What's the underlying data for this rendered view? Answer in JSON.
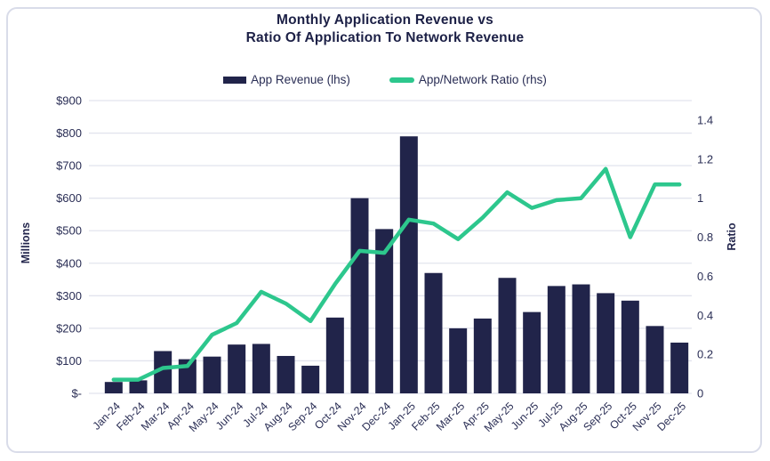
{
  "chart_data": {
    "type": "combo-bar-line",
    "title_line1": "Monthly Application Revenue vs",
    "title_line2": "Ratio Of Application To Network Revenue",
    "legend": [
      {
        "label": "App Revenue (lhs)",
        "marker": "bar"
      },
      {
        "label": "App/Network Ratio (rhs)",
        "marker": "line"
      }
    ],
    "categories": [
      "Jan-24",
      "Feb-24",
      "Mar-24",
      "Apr-24",
      "May-24",
      "Jun-24",
      "Jul-24",
      "Aug-24",
      "Sep-24",
      "Oct-24",
      "Nov-24",
      "Dec-24",
      "Jan-25",
      "Feb-25",
      "Mar-25",
      "Apr-25",
      "May-25",
      "Jun-25",
      "Jul-25",
      "Aug-25",
      "Sep-25",
      "Oct-25",
      "Nov-25",
      "Dec-25"
    ],
    "series": [
      {
        "name": "App Revenue (lhs)",
        "type": "bar",
        "axis": "left",
        "unit": "USD millions",
        "values": [
          35,
          40,
          130,
          105,
          113,
          150,
          152,
          115,
          85,
          233,
          600,
          505,
          790,
          370,
          200,
          230,
          355,
          250,
          330,
          335,
          308,
          285,
          207,
          156
        ]
      },
      {
        "name": "App/Network Ratio (rhs)",
        "type": "line",
        "axis": "right",
        "values": [
          0.07,
          0.07,
          0.13,
          0.14,
          0.3,
          0.36,
          0.52,
          0.46,
          0.37,
          0.56,
          0.73,
          0.72,
          0.89,
          0.87,
          0.79,
          0.9,
          1.03,
          0.95,
          0.99,
          1.0,
          1.15,
          0.8,
          1.07,
          1.07
        ]
      }
    ],
    "left_axis": {
      "label": "Millions",
      "ylim": [
        0,
        900
      ],
      "tick_step": 100,
      "tick_labels": [
        "$-",
        "$100",
        "$200",
        "$300",
        "$400",
        "$500",
        "$600",
        "$700",
        "$800",
        "$900"
      ]
    },
    "right_axis": {
      "label": "Ratio",
      "ylim": [
        0,
        1.5
      ],
      "tick_step": 0.2,
      "tick_labels": [
        "0",
        "0.2",
        "0.4",
        "0.6",
        "0.8",
        "1",
        "1.2",
        "1.4"
      ]
    },
    "grid": "horizontal",
    "legend_position": "top-center",
    "colors": {
      "bar": "#21244a",
      "line": "#2dc78d",
      "text": "#2a2e55",
      "title": "#1c2046",
      "gridline": "#e2e4ee",
      "card_border": "#d9dce9",
      "background": "#ffffff"
    }
  }
}
